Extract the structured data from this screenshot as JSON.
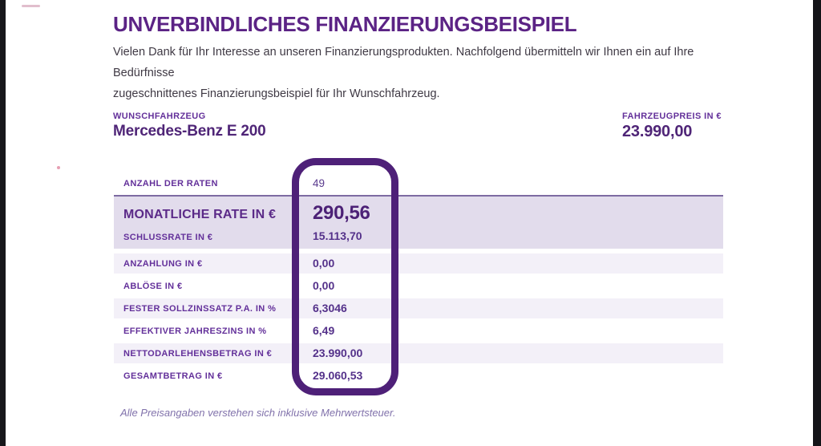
{
  "page": {
    "title": "UNVERBINDLICHES FINANZIERUNGSBEISPIEL",
    "intro_line1": "Vielen Dank für Ihr Interesse an unseren Finanzierungsprodukten. Nachfolgend übermitteln wir Ihnen ein auf Ihre Bedürfnisse",
    "intro_line2": "zugeschnittenes Finanzierungsbeispiel für Ihr Wunschfahrzeug.",
    "footnote": "Alle Preisangaben verstehen sich inklusive Mehrwertsteuer."
  },
  "vehicle": {
    "label": "WUNSCHFAHRZEUG",
    "name": "Mercedes-Benz E 200",
    "price_label": "FAHRZEUGPREIS IN €",
    "price_value": "23.990,00"
  },
  "table": {
    "first_row": {
      "label": "ANZAHL DER RATEN",
      "value": "49"
    },
    "highlight": {
      "primary_label": "MONATLICHE RATE IN €",
      "primary_value": "290,56",
      "secondary_label": "SCHLUSSRATE IN €",
      "secondary_value": "15.113,70"
    },
    "rows": [
      {
        "label": "ANZAHLUNG IN €",
        "value": "0,00"
      },
      {
        "label": "ABLÖSE IN €",
        "value": "0,00"
      },
      {
        "label": "FESTER SOLLZINSSATZ P.A. IN %",
        "value": "6,3046"
      },
      {
        "label": "EFFEKTIVER JAHRESZINS IN %",
        "value": "6,49"
      },
      {
        "label": "NETTODARLEHENSBETRAG IN €",
        "value": "23.990,00"
      },
      {
        "label": "GESAMTBETRAG IN €",
        "value": "29.060,53"
      }
    ]
  },
  "colors": {
    "brand_purple": "#5b2385",
    "value_purple": "#4c2176",
    "highlight_band_bg": "#e2dcec",
    "alt_row_bg": "#f3f0f8",
    "ring_purple": "#4e2078",
    "edge_bar_black": "#17171b",
    "footnote_purple": "#8172ab",
    "accent_pink": "#e087a0"
  }
}
